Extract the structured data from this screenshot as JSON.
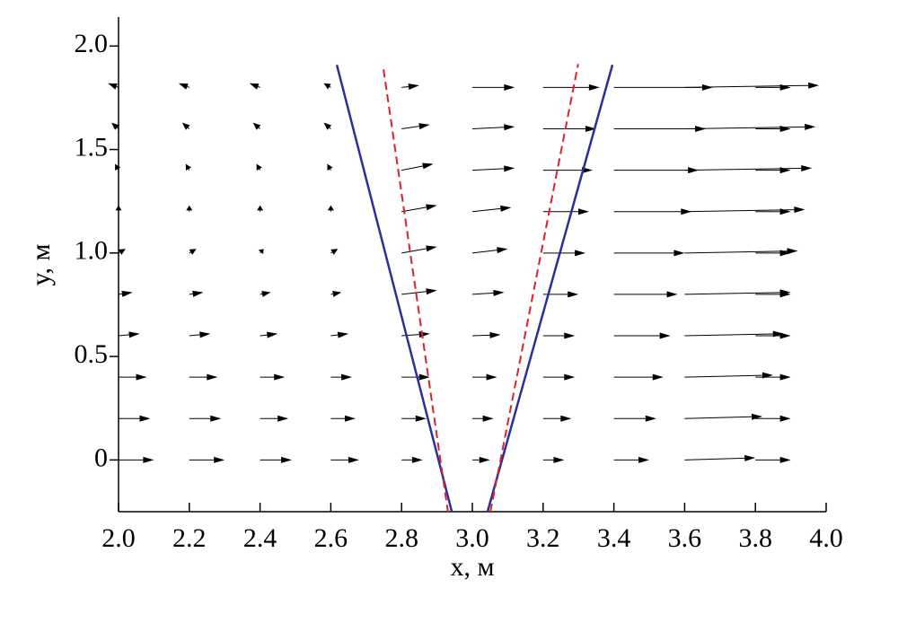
{
  "chart_data": {
    "type": "quiver",
    "xlabel": "x, м",
    "ylabel": "y, м",
    "xlim": [
      2.0,
      4.0
    ],
    "ylim": [
      -0.25,
      2.14
    ],
    "xticks": [
      {
        "value": 2,
        "label": "2.0"
      },
      2.2,
      2.4,
      2.6,
      2.8,
      {
        "value": 3,
        "label": "3.0"
      },
      3.2,
      3.4,
      3.6,
      3.8,
      {
        "value": 4,
        "label": "4.0"
      }
    ],
    "yticks": [
      0,
      0.5,
      {
        "value": 1,
        "label": "1.0"
      },
      1.5,
      {
        "value": 2,
        "label": "2.0"
      }
    ],
    "quiver": {
      "color": "#000000",
      "x": [
        2,
        2,
        2,
        2,
        2,
        2,
        2,
        2,
        2,
        2,
        2.2,
        2.2,
        2.2,
        2.2,
        2.2,
        2.2,
        2.2,
        2.2,
        2.2,
        2.2,
        2.4,
        2.4,
        2.4,
        2.4,
        2.4,
        2.4,
        2.4,
        2.4,
        2.4,
        2.4,
        2.6,
        2.6,
        2.6,
        2.6,
        2.6,
        2.6,
        2.6,
        2.6,
        2.6,
        2.6,
        2.8,
        2.8,
        2.8,
        2.8,
        2.8,
        2.8,
        2.8,
        2.8,
        2.8,
        2.8,
        3,
        3,
        3,
        3,
        3,
        3,
        3,
        3,
        3,
        3,
        3.2,
        3.2,
        3.2,
        3.2,
        3.2,
        3.2,
        3.2,
        3.2,
        3.2,
        3.2,
        3.4,
        3.4,
        3.4,
        3.4,
        3.4,
        3.4,
        3.4,
        3.4,
        3.4,
        3.4,
        3.6,
        3.6,
        3.6,
        3.6,
        3.6,
        3.6,
        3.6,
        3.6,
        3.6,
        3.6,
        3.8,
        3.8,
        3.8,
        3.8,
        3.8,
        3.8,
        3.8,
        3.8,
        3.8,
        3.8
      ],
      "y": [
        0,
        0.2,
        0.4,
        0.6,
        0.8,
        1,
        1.2,
        1.4,
        1.6,
        1.8,
        0,
        0.2,
        0.4,
        0.6,
        0.8,
        1,
        1.2,
        1.4,
        1.6,
        1.8,
        0,
        0.2,
        0.4,
        0.6,
        0.8,
        1,
        1.2,
        1.4,
        1.6,
        1.8,
        0,
        0.2,
        0.4,
        0.6,
        0.8,
        1,
        1.2,
        1.4,
        1.6,
        1.8,
        0,
        0.2,
        0.4,
        0.6,
        0.8,
        1,
        1.2,
        1.4,
        1.6,
        1.8,
        0,
        0.2,
        0.4,
        0.6,
        0.8,
        1,
        1.2,
        1.4,
        1.6,
        1.8,
        0,
        0.2,
        0.4,
        0.6,
        0.8,
        1,
        1.2,
        1.4,
        1.6,
        1.8,
        0,
        0.2,
        0.4,
        0.6,
        0.8,
        1,
        1.2,
        1.4,
        1.6,
        1.8,
        0,
        0.2,
        0.4,
        0.6,
        0.8,
        1,
        1.2,
        1.4,
        1.6,
        1.8,
        0,
        0.2,
        0.4,
        0.6,
        0.8,
        1,
        1.2,
        1.4,
        1.6,
        1.8
      ],
      "u": [
        0.1,
        0.09,
        0.08,
        0.06,
        0.04,
        0.02,
        0,
        -0.01,
        -0.02,
        -0.03,
        0.1,
        0.09,
        0.08,
        0.06,
        0.04,
        0.02,
        0,
        -0.01,
        -0.02,
        -0.03,
        0.09,
        0.08,
        0.07,
        0.05,
        0.03,
        0.01,
        0,
        -0.01,
        -0.02,
        -0.03,
        0.08,
        0.07,
        0.06,
        0.05,
        0.03,
        0.02,
        0,
        -0.01,
        -0.02,
        -0.02,
        0.06,
        0.07,
        0.08,
        0.08,
        0.1,
        0.1,
        0.1,
        0.09,
        0.08,
        0.05,
        0.05,
        0.06,
        0.07,
        0.08,
        0.09,
        0.1,
        0.11,
        0.12,
        0.12,
        0.12,
        0.06,
        0.08,
        0.09,
        0.09,
        0.1,
        0.12,
        0.13,
        0.14,
        0.15,
        0.16,
        0.1,
        0.12,
        0.14,
        0.16,
        0.18,
        0.2,
        0.22,
        0.24,
        0.26,
        0.28,
        0.2,
        0.22,
        0.25,
        0.28,
        0.3,
        0.32,
        0.34,
        0.36,
        0.37,
        0.38,
        0.1,
        0.1,
        0.1,
        0.1,
        0.1,
        0.1,
        0.1,
        0.1,
        0.1,
        0.1
      ],
      "v": [
        0,
        0,
        0,
        0.01,
        0.01,
        0.02,
        0.03,
        0.03,
        0.03,
        0.02,
        0,
        0,
        0,
        0.01,
        0.01,
        0.02,
        0.03,
        0.03,
        0.03,
        0.02,
        0,
        0,
        0,
        0.01,
        0.01,
        0.02,
        0.03,
        0.03,
        0.03,
        0.02,
        0,
        0,
        0,
        0.01,
        0.01,
        0.02,
        0.03,
        0.03,
        0.03,
        0.02,
        0,
        0,
        0,
        0.01,
        0.02,
        0.03,
        0.03,
        0.03,
        0.02,
        0.01,
        0,
        0,
        0,
        0.005,
        0.01,
        0.02,
        0.02,
        0.01,
        0.01,
        0,
        0,
        0,
        0,
        0,
        0,
        0,
        0,
        0,
        0,
        0,
        0,
        0,
        0,
        0,
        0,
        0,
        0,
        0,
        0,
        0,
        0.01,
        0.01,
        0.01,
        0.01,
        0.01,
        0.01,
        0.01,
        0.01,
        0.01,
        0.01,
        0,
        0,
        0,
        0,
        0,
        0,
        0,
        0,
        0,
        0
      ]
    },
    "lines": [
      {
        "color": "#2b2f9c",
        "dash": false,
        "x": [
          2.617,
          2.942
        ],
        "y": [
          1.909,
          -0.25
        ]
      },
      {
        "color": "#2b2f9c",
        "dash": false,
        "x": [
          3.043,
          3.396
        ],
        "y": [
          -0.25,
          1.909
        ]
      },
      {
        "color": "#e0202a",
        "dash": true,
        "x": [
          2.749,
          2.931
        ],
        "y": [
          1.887,
          -0.25
        ]
      },
      {
        "color": "#e0202a",
        "dash": true,
        "x": [
          3.051,
          3.299
        ],
        "y": [
          -0.25,
          1.913
        ]
      }
    ]
  }
}
